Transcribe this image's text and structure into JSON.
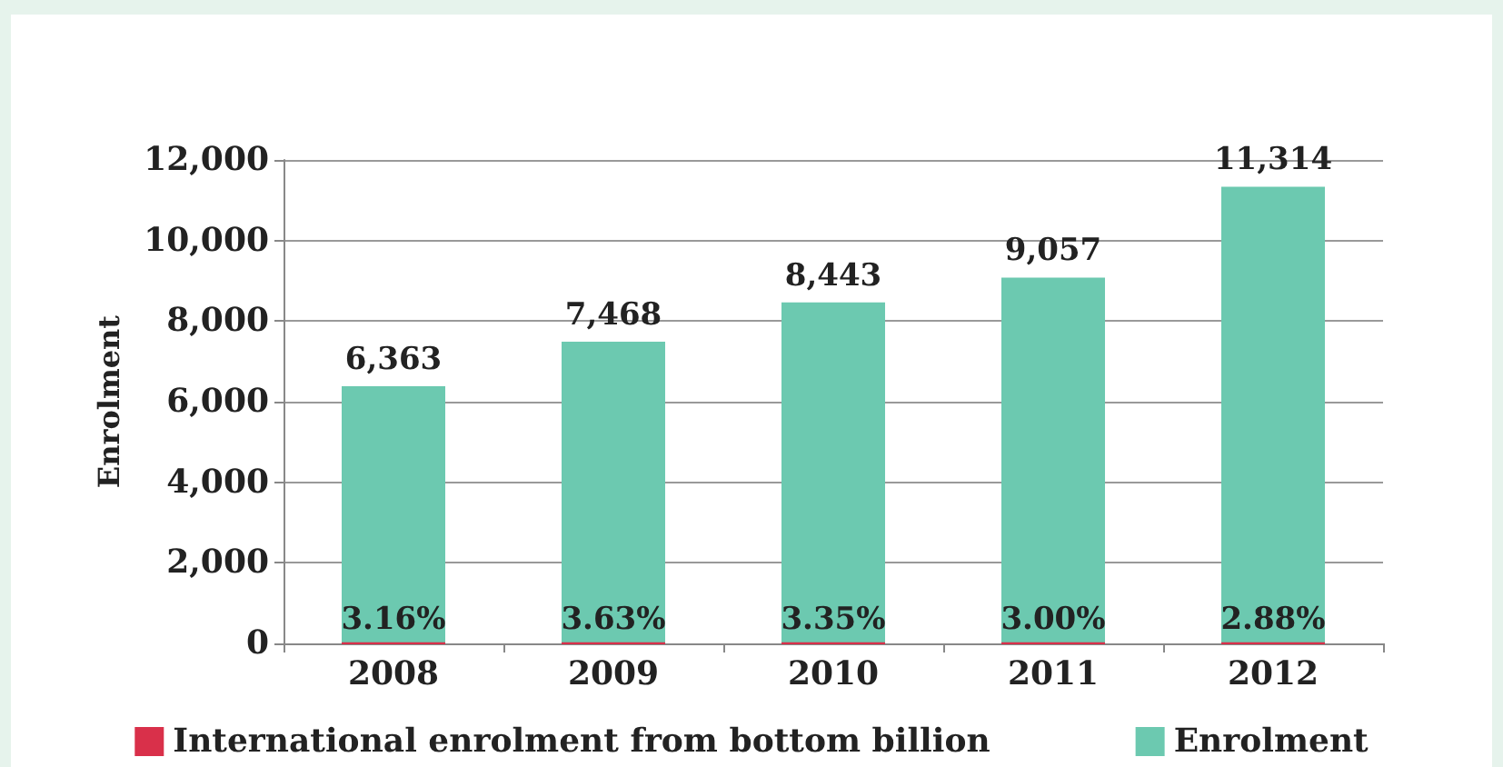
{
  "chart_data": {
    "type": "bar",
    "ylabel": "Enrolment",
    "categories": [
      "2008",
      "2009",
      "2010",
      "2011",
      "2012"
    ],
    "series": [
      {
        "name": "International enrolment from bottom billion",
        "color": "#d9304a",
        "values": [
          3.16,
          3.63,
          3.35,
          3.0,
          2.88
        ],
        "value_labels": [
          "3.16%",
          "3.63%",
          "3.35%",
          "3.00%",
          "2.88%"
        ]
      },
      {
        "name": "Enrolment",
        "color": "#6cc9b0",
        "values": [
          6363,
          7468,
          8443,
          9057,
          11314
        ],
        "value_labels": [
          "6,363",
          "7,468",
          "8,443",
          "9,057",
          "11,314"
        ]
      }
    ],
    "ylim": [
      0,
      12000
    ],
    "yticks": [
      {
        "value": 0,
        "label": "0"
      },
      {
        "value": 2000,
        "label": "2,000"
      },
      {
        "value": 4000,
        "label": "4,000"
      },
      {
        "value": 6000,
        "label": "6,000"
      },
      {
        "value": 8000,
        "label": "8,000"
      },
      {
        "value": 10000,
        "label": "10,000"
      },
      {
        "value": 12000,
        "label": "12,000"
      }
    ],
    "grid": "y",
    "legend": "bottom"
  }
}
